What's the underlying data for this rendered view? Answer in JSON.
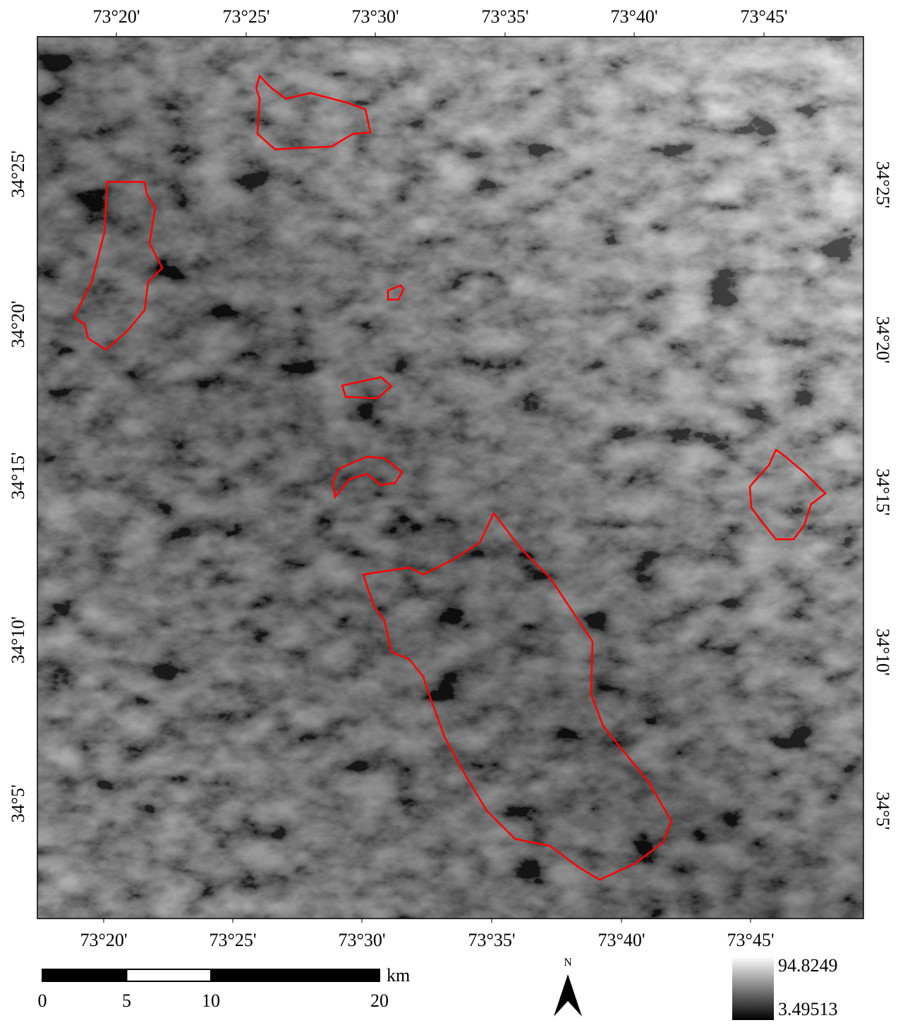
{
  "map": {
    "top_labels": [
      "73°20'",
      "73°25'",
      "73°30'",
      "73°35'",
      "73°40'",
      "73°45'"
    ],
    "bottom_labels": [
      "73°20'",
      "73°25'",
      "73°30'",
      "73°35'",
      "73°40'",
      "73°45'"
    ],
    "left_labels": [
      "34°25'",
      "34°20'",
      "34°15'",
      "34°10'",
      "34°5'"
    ],
    "right_labels": [
      "34°25'",
      "34°20'",
      "34°15'",
      "34°10'",
      "34°5'"
    ]
  },
  "scale_bar": {
    "ticks": [
      0,
      5,
      10,
      20
    ],
    "unit": "km"
  },
  "north_arrow": {
    "label": "N"
  },
  "legend": {
    "max": 94.8249,
    "min": 3.49513
  }
}
